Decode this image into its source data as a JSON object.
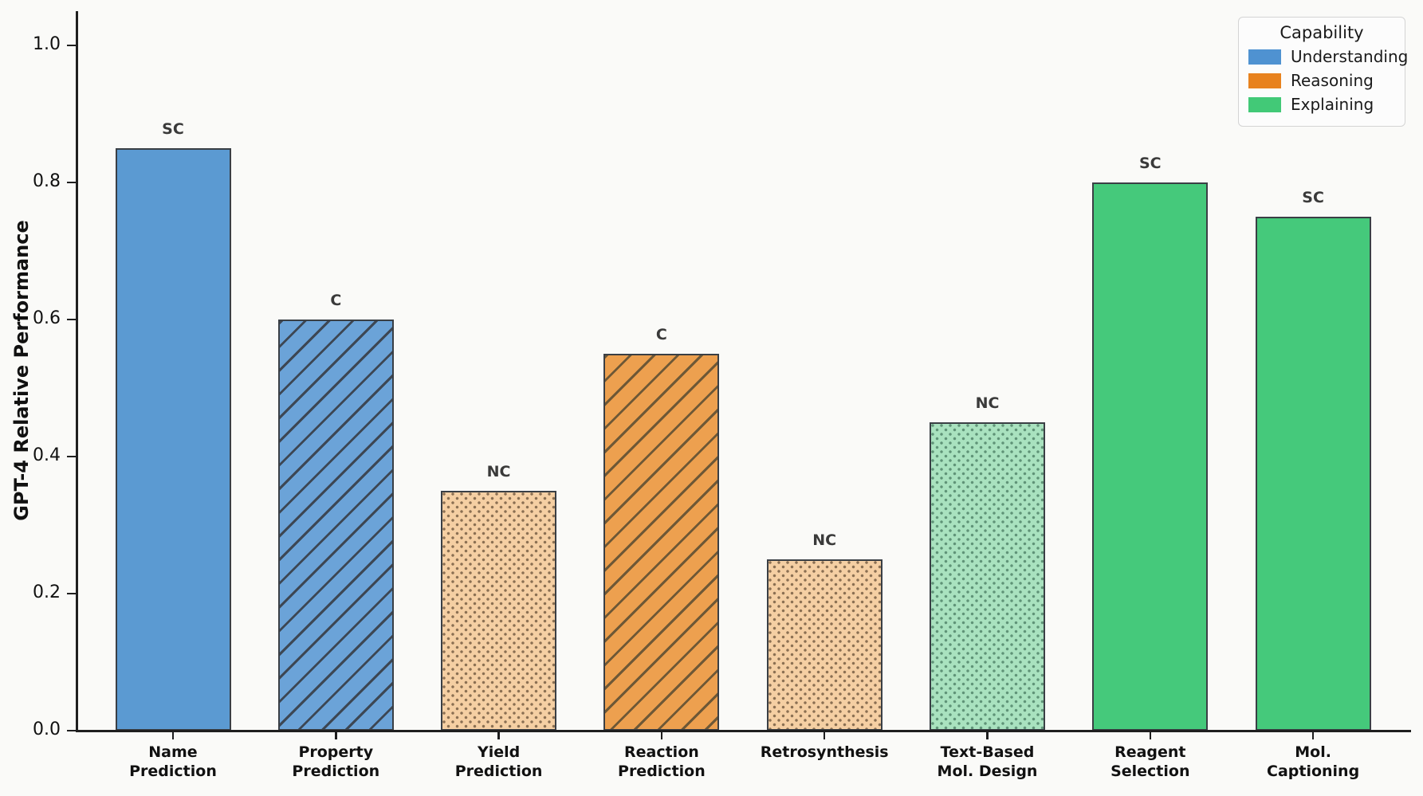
{
  "figure": {
    "background": "#fafaf8",
    "axis_color": "#1f1f1f",
    "bar_edge_color": "#3a3f45",
    "annotation_color": "#3a3a3a"
  },
  "chart_data": {
    "type": "bar",
    "title": "",
    "xlabel": "",
    "ylabel": "GPT-4 Relative Performance",
    "ylim": [
      0,
      1.05
    ],
    "yticks": [
      "0.0",
      "0.2",
      "0.4",
      "0.6",
      "0.8",
      "1.0"
    ],
    "grid": false,
    "legend": {
      "title": "Capability",
      "position": "top-right",
      "entries": [
        {
          "label": "Understanding",
          "color": "#4f92d1"
        },
        {
          "label": "Reasoning",
          "color": "#e8821e"
        },
        {
          "label": "Explaining",
          "color": "#42c977"
        }
      ]
    },
    "categories": [
      "Name\nPrediction",
      "Property\nPrediction",
      "Yield\nPrediction",
      "Reaction\nPrediction",
      "Retrosynthesis",
      "Text-Based\nMol. Design",
      "Reagent\nSelection",
      "Mol.\nCaptioning"
    ],
    "series": [
      {
        "name": "GPT-4 Relative Performance",
        "values": [
          0.85,
          0.6,
          0.35,
          0.55,
          0.25,
          0.45,
          0.8,
          0.75
        ]
      }
    ],
    "bars": [
      {
        "category": "Name Prediction",
        "value": 0.85,
        "annotation": "SC",
        "capability": "Understanding",
        "pattern": "solid",
        "fill": "#5b9ad2",
        "pattern_color": ""
      },
      {
        "category": "Property Prediction",
        "value": 0.6,
        "annotation": "C",
        "capability": "Understanding",
        "pattern": "hatch",
        "fill": "#6ba3d8",
        "pattern_color": "#3d4754"
      },
      {
        "category": "Yield Prediction",
        "value": 0.35,
        "annotation": "NC",
        "capability": "Reasoning",
        "pattern": "dots",
        "fill": "#f5cfa3",
        "pattern_color": "#8a6f52"
      },
      {
        "category": "Reaction Prediction",
        "value": 0.55,
        "annotation": "C",
        "capability": "Reasoning",
        "pattern": "hatch",
        "fill": "#eda04f",
        "pattern_color": "#6e5836"
      },
      {
        "category": "Retrosynthesis",
        "value": 0.25,
        "annotation": "NC",
        "capability": "Reasoning",
        "pattern": "dots",
        "fill": "#f5cfa3",
        "pattern_color": "#8a6f52"
      },
      {
        "category": "Text-Based Mol. Design",
        "value": 0.45,
        "annotation": "NC",
        "capability": "Explaining",
        "pattern": "dots",
        "fill": "#a9e2bf",
        "pattern_color": "#5f9377"
      },
      {
        "category": "Reagent Selection",
        "value": 0.8,
        "annotation": "SC",
        "capability": "Explaining",
        "pattern": "solid",
        "fill": "#45c97b",
        "pattern_color": ""
      },
      {
        "category": "Mol. Captioning",
        "value": 0.75,
        "annotation": "SC",
        "capability": "Explaining",
        "pattern": "solid",
        "fill": "#45c97b",
        "pattern_color": ""
      }
    ]
  }
}
